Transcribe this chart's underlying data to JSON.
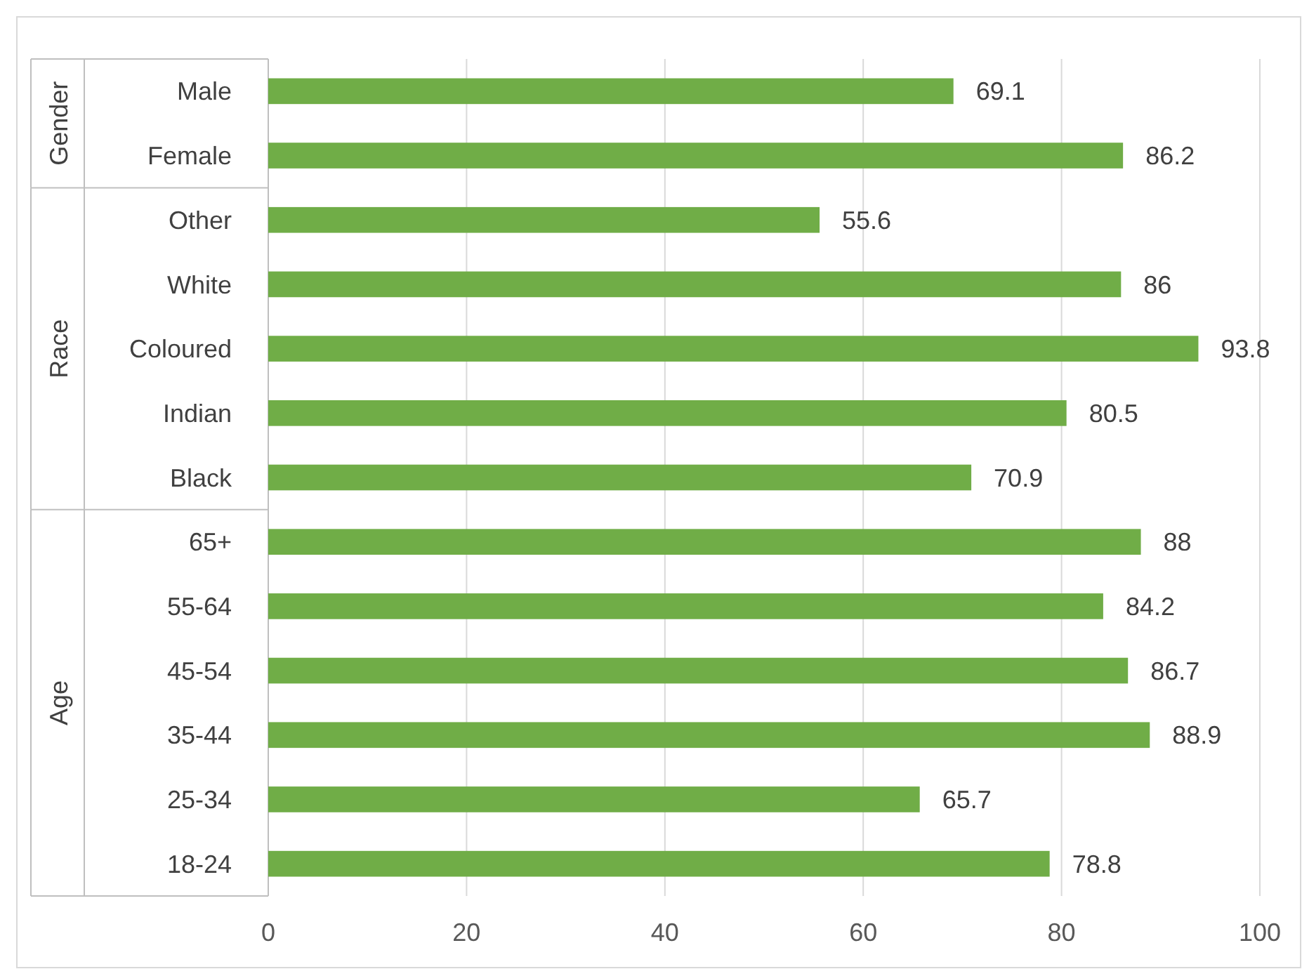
{
  "chart_data": {
    "type": "bar",
    "orientation": "horizontal",
    "categories": [
      "Male",
      "Female",
      "Other",
      "White",
      "Coloured",
      "Indian",
      "Black",
      "65+",
      "55-64",
      "45-54",
      "35-44",
      "25-34",
      "18-24"
    ],
    "values": [
      69.1,
      86.2,
      55.6,
      86,
      93.8,
      80.5,
      70.9,
      88,
      84.2,
      86.7,
      88.9,
      65.7,
      78.8
    ],
    "color": "#70ad47",
    "data_labels": true,
    "xlim": [
      0,
      100
    ],
    "xticks": [
      0,
      20,
      40,
      60,
      80,
      100
    ],
    "grid": "x",
    "annotations": [
      "Gender",
      "Race",
      "Age"
    ]
  }
}
